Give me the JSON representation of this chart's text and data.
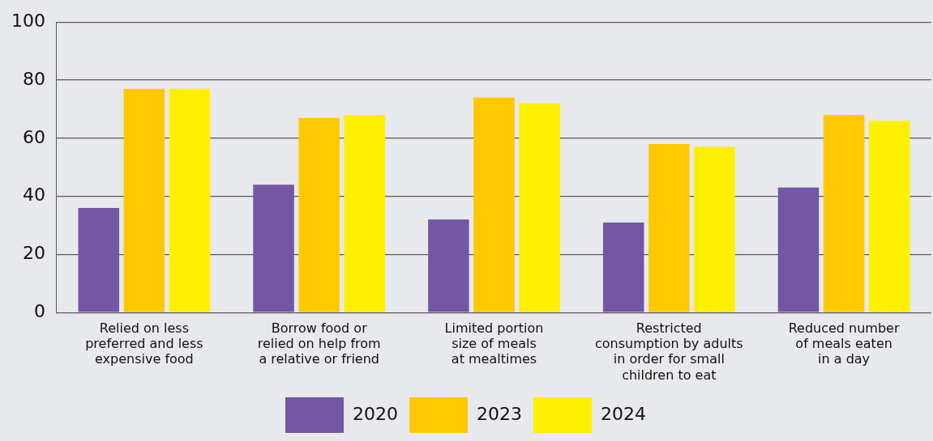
{
  "chart_data": {
    "type": "bar",
    "categories": [
      "Relied on less\npreferred and less\nexpensive food",
      "Borrow food or\nrelied on help from\na relative or friend",
      "Limited portion\nsize of meals\nat mealtimes",
      "Restricted\nconsumption by adults\nin order for small\nchildren to eat",
      "Reduced number\nof meals eaten\nin a day"
    ],
    "series": [
      {
        "name": "2020",
        "color": "#7356a4",
        "values": [
          36,
          44,
          32,
          31,
          43
        ]
      },
      {
        "name": "2023",
        "color": "#ffc800",
        "values": [
          77,
          67,
          74,
          58,
          68
        ]
      },
      {
        "name": "2024",
        "color": "#fff000",
        "values": [
          77,
          68,
          72,
          57,
          66
        ]
      }
    ],
    "ylim": [
      0,
      100
    ],
    "yticks": [
      0,
      20,
      40,
      60,
      80,
      100
    ],
    "grid": "y",
    "legend": "bottom"
  }
}
